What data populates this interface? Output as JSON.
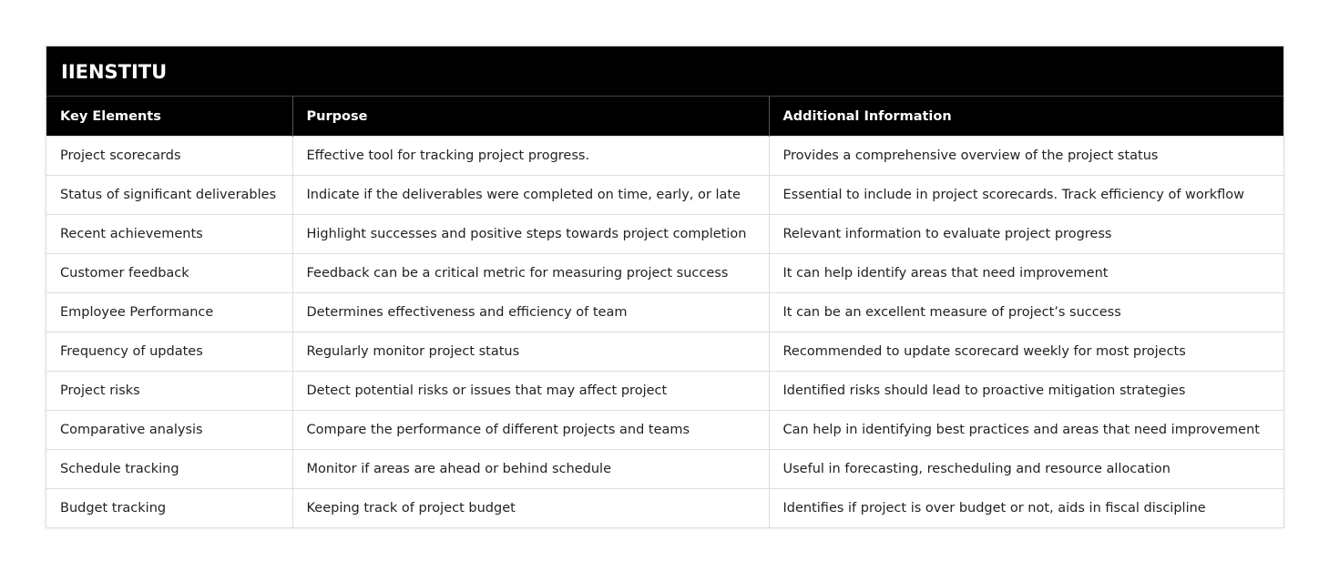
{
  "title": "IIENSTITU",
  "headers": [
    "Key Elements",
    "Purpose",
    "Additional Information"
  ],
  "rows": [
    [
      "Project scorecards",
      "Effective tool for tracking project progress.",
      "Provides a comprehensive overview of the project status"
    ],
    [
      "Status of significant deliverables",
      "Indicate if the deliverables were completed on time, early, or late",
      "Essential to include in project scorecards. Track efficiency of workflow"
    ],
    [
      "Recent achievements",
      "Highlight successes and positive steps towards project completion",
      "Relevant information to evaluate project progress"
    ],
    [
      "Customer feedback",
      "Feedback can be a critical metric for measuring project success",
      "It can help identify areas that need improvement"
    ],
    [
      "Employee Performance",
      "Determines effectiveness and efficiency of team",
      "It can be an excellent measure of project’s success"
    ],
    [
      "Frequency of updates",
      "Regularly monitor project status",
      "Recommended to update scorecard weekly for most projects"
    ],
    [
      "Project risks",
      "Detect potential risks or issues that may affect project",
      "Identified risks should lead to proactive mitigation strategies"
    ],
    [
      "Comparative analysis",
      "Compare the performance of different projects and teams",
      "Can help in identifying best practices and areas that need improvement"
    ],
    [
      "Schedule tracking",
      "Monitor if areas are ahead or behind schedule",
      "Useful in forecasting, rescheduling and resource allocation"
    ],
    [
      "Budget tracking",
      "Keeping track of project budget",
      "Identifies if project is over budget or not, aids in fiscal discipline"
    ]
  ]
}
